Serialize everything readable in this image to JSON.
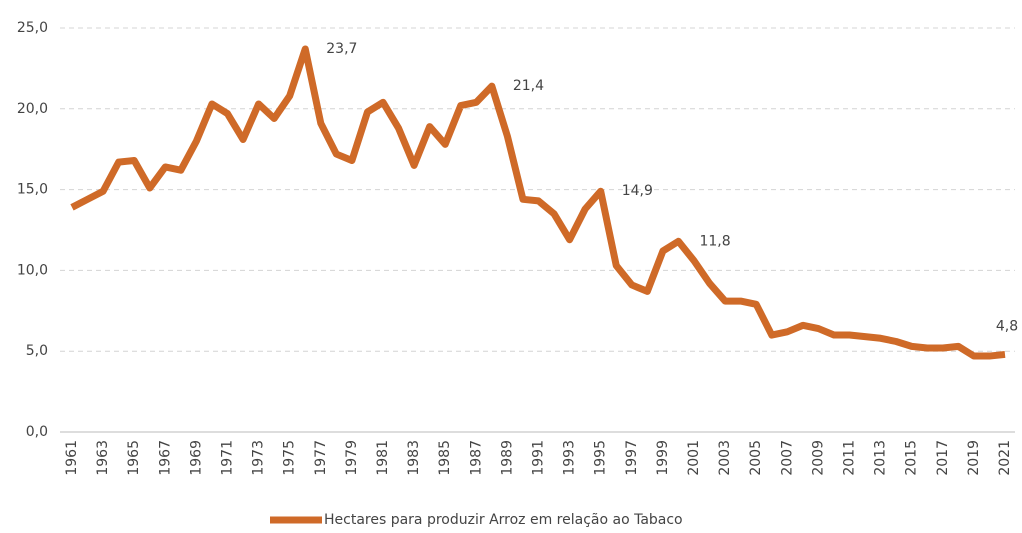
{
  "chart_data": {
    "type": "line",
    "x": [
      1961,
      1962,
      1963,
      1964,
      1965,
      1966,
      1967,
      1968,
      1969,
      1970,
      1971,
      1972,
      1973,
      1974,
      1975,
      1976,
      1977,
      1978,
      1979,
      1980,
      1981,
      1982,
      1983,
      1984,
      1985,
      1986,
      1987,
      1988,
      1989,
      1990,
      1991,
      1992,
      1993,
      1994,
      1995,
      1996,
      1997,
      1998,
      1999,
      2000,
      2001,
      2002,
      2003,
      2004,
      2005,
      2006,
      2007,
      2008,
      2009,
      2010,
      2011,
      2012,
      2013,
      2014,
      2015,
      2016,
      2017,
      2018,
      2019,
      2020,
      2021
    ],
    "series": [
      {
        "name": "Hectares para produzir Arroz em relação ao Tabaco",
        "color": "#cf6a28",
        "values": [
          13.9,
          14.4,
          14.9,
          16.7,
          16.8,
          15.1,
          16.4,
          16.2,
          18.0,
          20.3,
          19.7,
          18.1,
          20.3,
          19.4,
          20.8,
          23.7,
          19.1,
          17.2,
          16.8,
          19.8,
          20.4,
          18.8,
          16.5,
          18.9,
          17.8,
          20.2,
          20.4,
          21.4,
          18.3,
          14.4,
          14.3,
          13.5,
          11.9,
          13.8,
          14.9,
          10.3,
          9.1,
          8.7,
          11.2,
          11.8,
          10.6,
          9.2,
          8.1,
          8.1,
          7.9,
          6.0,
          6.2,
          6.6,
          6.4,
          6.0,
          6.0,
          5.9,
          5.8,
          5.6,
          5.3,
          5.2,
          5.2,
          5.3,
          4.7,
          4.7,
          4.8
        ],
        "value_labels": [
          null,
          null,
          null,
          null,
          null,
          null,
          null,
          null,
          null,
          null,
          null,
          null,
          null,
          null,
          null,
          "23,7",
          null,
          null,
          null,
          null,
          null,
          null,
          null,
          null,
          null,
          null,
          null,
          "21,4",
          null,
          null,
          null,
          null,
          null,
          null,
          "14,9",
          null,
          null,
          null,
          null,
          "11,8",
          null,
          null,
          null,
          null,
          null,
          null,
          null,
          null,
          null,
          null,
          null,
          null,
          null,
          null,
          null,
          null,
          null,
          null,
          null,
          null,
          "4,8"
        ]
      }
    ],
    "xlim": [
      1961,
      2021
    ],
    "xticks": [
      1961,
      1963,
      1965,
      1967,
      1969,
      1971,
      1973,
      1975,
      1977,
      1979,
      1981,
      1983,
      1985,
      1987,
      1989,
      1991,
      1993,
      1995,
      1997,
      1999,
      2001,
      2003,
      2005,
      2007,
      2009,
      2011,
      2013,
      2015,
      2017,
      2019,
      2021
    ],
    "ylim": [
      0,
      25
    ],
    "yticks": [
      {
        "value": 0,
        "label": "0,0"
      },
      {
        "value": 5,
        "label": "5,0"
      },
      {
        "value": 10,
        "label": "10,0"
      },
      {
        "value": 15,
        "label": "15,0"
      },
      {
        "value": 20,
        "label": "20,0"
      },
      {
        "value": 25,
        "label": "25,0"
      }
    ],
    "grid": true,
    "legend": "bottom"
  }
}
